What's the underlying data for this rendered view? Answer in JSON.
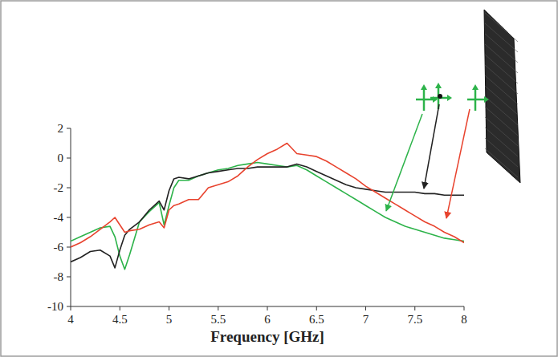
{
  "chart_data": {
    "type": "line",
    "x_label": "Frequency [GHz]",
    "x": [
      4,
      4.1,
      4.2,
      4.3,
      4.4,
      4.45,
      4.5,
      4.55,
      4.6,
      4.7,
      4.8,
      4.9,
      4.95,
      5,
      5.05,
      5.1,
      5.2,
      5.3,
      5.4,
      5.5,
      5.6,
      5.7,
      5.8,
      5.9,
      6,
      6.1,
      6.2,
      6.3,
      6.4,
      6.5,
      6.6,
      6.7,
      6.8,
      6.9,
      7,
      7.1,
      7.2,
      7.3,
      7.4,
      7.5,
      7.6,
      7.7,
      7.8,
      7.9,
      8
    ],
    "series": [
      {
        "color": "#2db34a",
        "values": [
          -5.6,
          -5.3,
          -5.0,
          -4.7,
          -4.6,
          -5.3,
          -6.6,
          -7.5,
          -6.5,
          -4.3,
          -3.6,
          -3.0,
          -4.5,
          -3.2,
          -2.0,
          -1.5,
          -1.5,
          -1.2,
          -1.0,
          -0.8,
          -0.7,
          -0.5,
          -0.4,
          -0.3,
          -0.4,
          -0.5,
          -0.6,
          -0.5,
          -0.8,
          -1.2,
          -1.6,
          -2.0,
          -2.4,
          -2.8,
          -3.2,
          -3.6,
          -4.0,
          -4.3,
          -4.6,
          -4.8,
          -5.0,
          -5.2,
          -5.4,
          -5.5,
          -5.6
        ]
      },
      {
        "color": "#222222",
        "values": [
          -7.0,
          -6.7,
          -6.3,
          -6.2,
          -6.6,
          -7.4,
          -6.2,
          -5.2,
          -4.8,
          -4.3,
          -3.5,
          -2.9,
          -3.5,
          -2.2,
          -1.4,
          -1.3,
          -1.4,
          -1.2,
          -1.0,
          -0.9,
          -0.8,
          -0.7,
          -0.7,
          -0.6,
          -0.6,
          -0.6,
          -0.6,
          -0.4,
          -0.6,
          -0.9,
          -1.2,
          -1.5,
          -1.8,
          -2.0,
          -2.1,
          -2.2,
          -2.3,
          -2.3,
          -2.3,
          -2.3,
          -2.4,
          -2.4,
          -2.5,
          -2.5,
          -2.5
        ]
      },
      {
        "color": "#e8432e",
        "values": [
          -6.0,
          -5.7,
          -5.3,
          -4.8,
          -4.3,
          -4.0,
          -4.5,
          -5.0,
          -4.9,
          -4.8,
          -4.5,
          -4.3,
          -4.7,
          -3.5,
          -3.2,
          -3.1,
          -2.8,
          -2.8,
          -2.0,
          -1.8,
          -1.6,
          -1.2,
          -0.6,
          -0.1,
          0.3,
          0.6,
          1.0,
          0.3,
          0.2,
          0.1,
          -0.2,
          -0.6,
          -1.0,
          -1.4,
          -1.9,
          -2.3,
          -2.7,
          -3.1,
          -3.5,
          -3.9,
          -4.3,
          -4.6,
          -5.0,
          -5.3,
          -5.7
        ]
      }
    ],
    "xlim": [
      4,
      8
    ],
    "xticks": [
      4,
      4.5,
      5,
      5.5,
      6,
      6.5,
      7,
      7.5,
      8
    ],
    "ylim": [
      -10,
      2
    ],
    "yticks": [
      -10,
      -8,
      -6,
      -4,
      -2,
      0,
      2
    ],
    "grid": false
  }
}
